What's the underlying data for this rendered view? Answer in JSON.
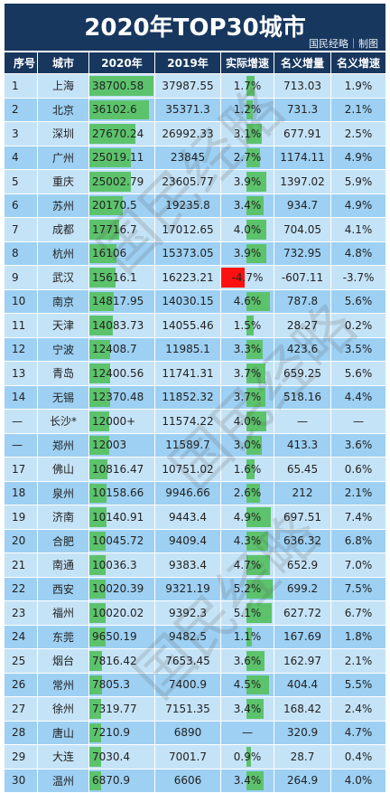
{
  "title": "2020年TOP30城市",
  "credit": "国民经略｜制图",
  "watermark": "国民经略",
  "colors": {
    "header": "#17375e",
    "row_odd": "#c5e3f7",
    "row_even": "#9dd0f3",
    "bar_green": "#5cc36c",
    "bar_red": "#ff1010"
  },
  "columns": [
    "序号",
    "城市",
    "2020年",
    "2019年",
    "实际增速",
    "名义增量",
    "名义增速"
  ],
  "rows": [
    {
      "rank": "1",
      "city": "上海",
      "v2020": "38700.58",
      "v2019": "37987.55",
      "growth": "1.7%",
      "inc": "713.03",
      "nominal": "1.9%"
    },
    {
      "rank": "2",
      "city": "北京",
      "v2020": "36102.6",
      "v2019": "35371.3",
      "growth": "1.2%",
      "inc": "731.3",
      "nominal": "2.1%"
    },
    {
      "rank": "3",
      "city": "深圳",
      "v2020": "27670.24",
      "v2019": "26992.33",
      "growth": "3.1%",
      "inc": "677.91",
      "nominal": "2.5%"
    },
    {
      "rank": "4",
      "city": "广州",
      "v2020": "25019.11",
      "v2019": "23845",
      "growth": "2.7%",
      "inc": "1174.11",
      "nominal": "4.9%"
    },
    {
      "rank": "5",
      "city": "重庆",
      "v2020": "25002.79",
      "v2019": "23605.77",
      "growth": "3.9%",
      "inc": "1397.02",
      "nominal": "5.9%"
    },
    {
      "rank": "6",
      "city": "苏州",
      "v2020": "20170.5",
      "v2019": "19235.8",
      "growth": "3.4%",
      "inc": "934.7",
      "nominal": "4.9%"
    },
    {
      "rank": "7",
      "city": "成都",
      "v2020": "17716.7",
      "v2019": "17012.65",
      "growth": "4.0%",
      "inc": "704.05",
      "nominal": "4.1%"
    },
    {
      "rank": "8",
      "city": "杭州",
      "v2020": "16106",
      "v2019": "15373.05",
      "growth": "3.9%",
      "inc": "732.95",
      "nominal": "4.8%"
    },
    {
      "rank": "9",
      "city": "武汉",
      "v2020": "15616.1",
      "v2019": "16223.21",
      "growth": "-4.7%",
      "inc": "-607.11",
      "nominal": "-3.7%"
    },
    {
      "rank": "10",
      "city": "南京",
      "v2020": "14817.95",
      "v2019": "14030.15",
      "growth": "4.6%",
      "inc": "787.8",
      "nominal": "5.6%"
    },
    {
      "rank": "11",
      "city": "天津",
      "v2020": "14083.73",
      "v2019": "14055.46",
      "growth": "1.5%",
      "inc": "28.27",
      "nominal": "0.2%"
    },
    {
      "rank": "12",
      "city": "宁波",
      "v2020": "12408.7",
      "v2019": "11985.1",
      "growth": "3.3%",
      "inc": "423.6",
      "nominal": "3.5%"
    },
    {
      "rank": "13",
      "city": "青岛",
      "v2020": "12400.56",
      "v2019": "11741.31",
      "growth": "3.7%",
      "inc": "659.25",
      "nominal": "5.6%"
    },
    {
      "rank": "14",
      "city": "无锡",
      "v2020": "12370.48",
      "v2019": "11852.32",
      "growth": "3.7%",
      "inc": "518.16",
      "nominal": "4.4%"
    },
    {
      "rank": "—",
      "city": "长沙*",
      "v2020": "12000+",
      "v2019": "11574.22",
      "growth": "4.0%",
      "inc": "—",
      "nominal": "—"
    },
    {
      "rank": "—",
      "city": "郑州",
      "v2020": "12003",
      "v2019": "11589.7",
      "growth": "3.0%",
      "inc": "413.3",
      "nominal": "3.6%"
    },
    {
      "rank": "17",
      "city": "佛山",
      "v2020": "10816.47",
      "v2019": "10751.02",
      "growth": "1.6%",
      "inc": "65.45",
      "nominal": "0.6%"
    },
    {
      "rank": "18",
      "city": "泉州",
      "v2020": "10158.66",
      "v2019": "9946.66",
      "growth": "2.6%",
      "inc": "212",
      "nominal": "2.1%"
    },
    {
      "rank": "19",
      "city": "济南",
      "v2020": "10140.91",
      "v2019": "9443.4",
      "growth": "4.9%",
      "inc": "697.51",
      "nominal": "7.4%"
    },
    {
      "rank": "20",
      "city": "合肥",
      "v2020": "10045.72",
      "v2019": "9409.4",
      "growth": "4.3%",
      "inc": "636.32",
      "nominal": "6.8%"
    },
    {
      "rank": "21",
      "city": "南通",
      "v2020": "10036.3",
      "v2019": "9383.4",
      "growth": "4.7%",
      "inc": "652.9",
      "nominal": "7.0%"
    },
    {
      "rank": "22",
      "city": "西安",
      "v2020": "10020.39",
      "v2019": "9321.19",
      "growth": "5.2%",
      "inc": "699.2",
      "nominal": "7.5%"
    },
    {
      "rank": "23",
      "city": "福州",
      "v2020": "10020.02",
      "v2019": "9392.3",
      "growth": "5.1%",
      "inc": "627.72",
      "nominal": "6.7%"
    },
    {
      "rank": "24",
      "city": "东莞",
      "v2020": "9650.19",
      "v2019": "9482.5",
      "growth": "1.1%",
      "inc": "167.69",
      "nominal": "1.8%"
    },
    {
      "rank": "25",
      "city": "烟台",
      "v2020": "7816.42",
      "v2019": "7653.45",
      "growth": "3.6%",
      "inc": "162.97",
      "nominal": "2.1%"
    },
    {
      "rank": "26",
      "city": "常州",
      "v2020": "7805.3",
      "v2019": "7400.9",
      "growth": "4.5%",
      "inc": "404.4",
      "nominal": "5.5%"
    },
    {
      "rank": "27",
      "city": "徐州",
      "v2020": "7319.77",
      "v2019": "7151.35",
      "growth": "3.4%",
      "inc": "168.42",
      "nominal": "2.4%"
    },
    {
      "rank": "28",
      "city": "唐山",
      "v2020": "7210.9",
      "v2019": "6890",
      "growth": "—",
      "inc": "320.9",
      "nominal": "4.7%"
    },
    {
      "rank": "29",
      "city": "大连",
      "v2020": "7030.4",
      "v2019": "7001.7",
      "growth": "0.9%",
      "inc": "28.7",
      "nominal": "0.4%"
    },
    {
      "rank": "30",
      "city": "温州",
      "v2020": "6870.9",
      "v2019": "6606",
      "growth": "3.4%",
      "inc": "264.9",
      "nominal": "4.0%"
    }
  ]
}
